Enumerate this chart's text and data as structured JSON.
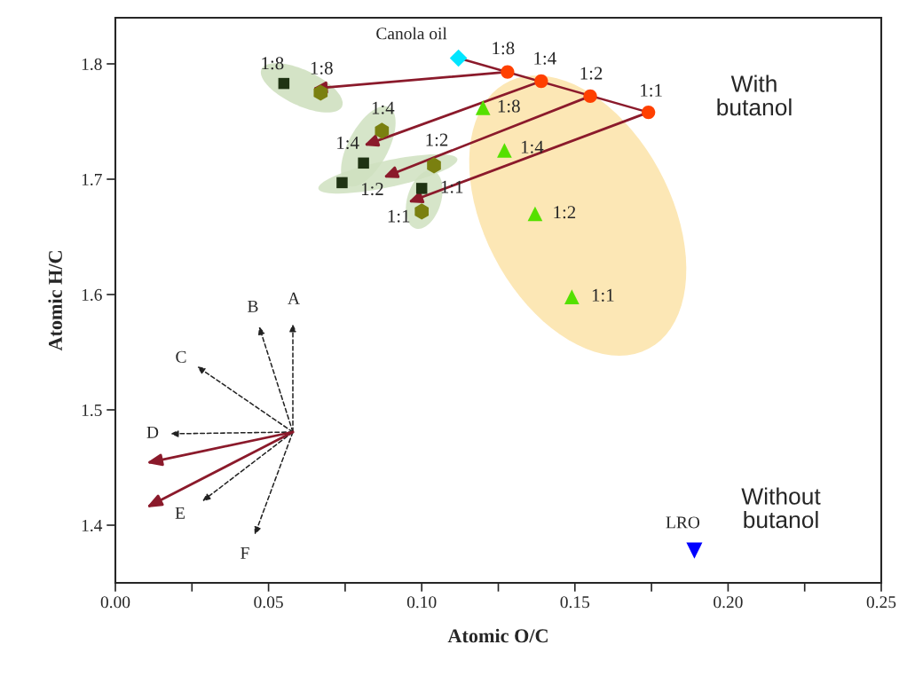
{
  "chart_data": {
    "type": "scatter",
    "xlabel": "Atomic O/C",
    "ylabel": "Atomic H/C",
    "xlim": [
      0,
      0.25
    ],
    "ylim": [
      1.35,
      1.84
    ],
    "xticks": [
      {
        "value": 0,
        "label": "0.00"
      },
      {
        "value": 0.025,
        "label": null
      },
      {
        "value": 0.05,
        "label": "0.05"
      },
      {
        "value": 0.075,
        "label": null
      },
      {
        "value": 0.1,
        "label": "0.10"
      },
      {
        "value": 0.125,
        "label": null
      },
      {
        "value": 0.15,
        "label": "0.15"
      },
      {
        "value": 0.175,
        "label": null
      },
      {
        "value": 0.2,
        "label": "0.20"
      },
      {
        "value": 0.225,
        "label": null
      },
      {
        "value": 0.25,
        "label": "0.25"
      }
    ],
    "yticks": [
      1.4,
      1.5,
      1.6,
      1.7,
      1.8
    ],
    "grid": false,
    "legend": false,
    "series": [
      {
        "name": "Canola oil",
        "color": "#00e5ff",
        "marker": "diamond",
        "x": [
          0.112
        ],
        "values": [
          1.805
        ]
      },
      {
        "color": "#ff4000",
        "marker": "circle",
        "x": [
          0.128,
          0.139,
          0.155,
          0.174
        ],
        "values": [
          1.793,
          1.785,
          1.772,
          1.758
        ],
        "value_labels": [
          "1:8",
          "1:4",
          "1:2",
          "1:1"
        ]
      },
      {
        "color": "#55e000",
        "marker": "triangle",
        "x": [
          0.12,
          0.127,
          0.137,
          0.149
        ],
        "values": [
          1.762,
          1.725,
          1.67,
          1.598
        ],
        "value_labels": [
          "1:8",
          "1:4",
          "1:2",
          "1:1"
        ]
      },
      {
        "color": "#1f3313",
        "marker": "square",
        "x": [
          0.055,
          0.081,
          0.074,
          0.1
        ],
        "values": [
          1.783,
          1.714,
          1.697,
          1.692
        ],
        "value_labels": [
          "1:8",
          "1:4",
          "1:2",
          "1:1"
        ]
      },
      {
        "color": "#7a8010",
        "x": [
          0.067,
          0.087,
          0.104,
          0.1
        ],
        "values": [
          1.775,
          1.742,
          1.712,
          1.672
        ],
        "value_labels": [
          "1:8",
          "1:4",
          "1:2",
          "1:1"
        ]
      },
      {
        "name": "LRO",
        "color": "#0000ff",
        "marker": "triangle_down",
        "x": [
          0.189
        ],
        "values": [
          1.378
        ]
      }
    ],
    "annotations": [
      "With\nbutanol",
      "Without\nbutanol",
      "A",
      "B",
      "C",
      "D",
      "E",
      "F"
    ]
  }
}
